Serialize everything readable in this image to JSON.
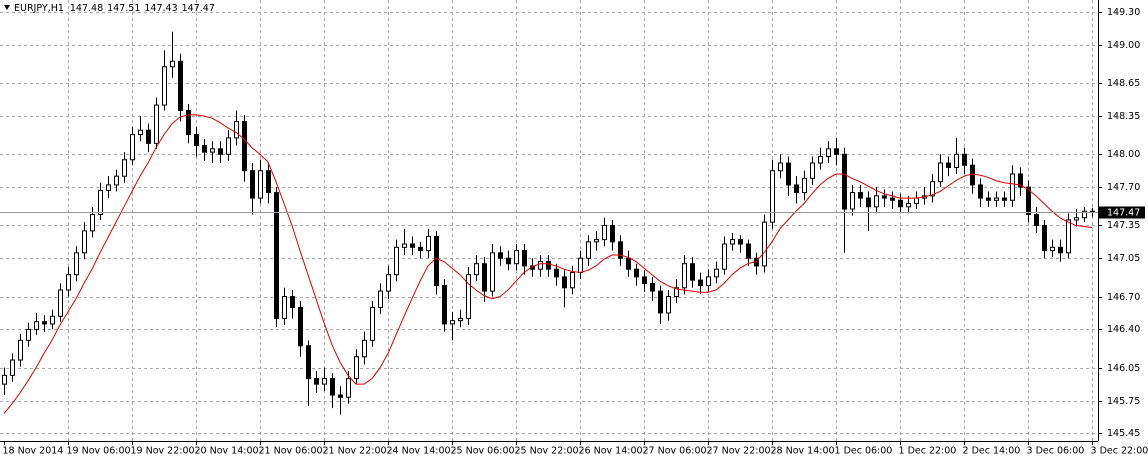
{
  "chart_data": {
    "type": "candlestick",
    "title": "EURJPY,H1",
    "categories": [
      "18 Nov 2014",
      null,
      null,
      null,
      null,
      null,
      null,
      null,
      "19 Nov 06:00",
      null,
      null,
      null,
      null,
      null,
      null,
      null,
      "19 Nov 22:00",
      null,
      null,
      null,
      null,
      null,
      null,
      null,
      "20 Nov 14:00",
      null,
      null,
      null,
      null,
      null,
      null,
      null,
      "21 Nov 06:00",
      null,
      null,
      null,
      null,
      null,
      null,
      null,
      "21 Nov 22:00",
      null,
      null,
      null,
      null,
      null,
      null,
      null,
      "24 Nov 14:00",
      null,
      null,
      null,
      null,
      null,
      null,
      null,
      "25 Nov 06:00",
      null,
      null,
      null,
      null,
      null,
      null,
      null,
      "25 Nov 22:00",
      null,
      null,
      null,
      null,
      null,
      null,
      null,
      "26 Nov 14:00",
      null,
      null,
      null,
      null,
      null,
      null,
      null,
      "27 Nov 06:00",
      null,
      null,
      null,
      null,
      null,
      null,
      null,
      "27 Nov 22:00",
      null,
      null,
      null,
      null,
      null,
      null,
      null,
      "28 Nov 14:00",
      null,
      null,
      null,
      null,
      null,
      null,
      null,
      "1 Dec 06:00",
      null,
      null,
      null,
      null,
      null,
      null,
      null,
      "1 Dec 22:00",
      null,
      null,
      null,
      null,
      null,
      null,
      null,
      "2 Dec 14:00",
      null,
      null,
      null,
      null,
      null,
      null,
      null,
      "3 Dec 06:00",
      null,
      null,
      null,
      null,
      null,
      null,
      null,
      "3 Dec 22:00"
    ],
    "open": [
      145.9,
      145.98,
      146.12,
      146.3,
      146.4,
      146.47,
      146.45,
      146.52,
      146.76,
      146.9,
      147.1,
      147.3,
      147.45,
      147.67,
      147.72,
      147.8,
      147.95,
      148.18,
      148.22,
      148.1,
      148.45,
      148.8,
      148.85,
      148.4,
      148.18,
      148.08,
      148.02,
      148.05,
      148.0,
      148.15,
      148.3,
      147.85,
      147.6,
      147.85,
      147.65,
      146.5,
      146.7,
      146.6,
      146.25,
      145.95,
      145.9,
      145.95,
      145.8,
      145.78,
      145.95,
      146.15,
      146.3,
      146.6,
      146.75,
      146.9,
      147.15,
      147.18,
      147.15,
      147.12,
      147.25,
      146.8,
      146.45,
      146.48,
      146.5,
      146.9,
      147.0,
      146.75,
      147.1,
      147.05,
      147.0,
      147.12,
      146.98,
      146.95,
      147.02,
      146.95,
      146.88,
      146.78,
      146.92,
      147.05,
      147.2,
      147.22,
      147.35,
      147.2,
      147.05,
      146.95,
      146.88,
      146.82,
      146.75,
      146.55,
      146.7,
      146.78,
      147.0,
      146.85,
      146.8,
      146.88,
      146.95,
      147.18,
      147.22,
      147.18,
      147.05,
      146.98,
      147.38,
      147.85,
      147.92,
      147.72,
      147.65,
      147.78,
      147.92,
      147.98,
      148.05,
      148.0,
      147.5,
      147.65,
      147.6,
      147.52,
      147.62,
      147.6,
      147.58,
      147.52,
      147.55,
      147.6,
      147.62,
      147.75,
      147.92,
      147.88,
      148.0,
      147.9,
      147.72,
      147.6,
      147.58,
      147.6,
      147.58,
      147.82,
      147.7,
      147.45,
      147.35,
      147.12,
      147.15,
      147.1,
      147.4,
      147.42,
      147.48
    ],
    "high": [
      146.05,
      146.18,
      146.36,
      146.46,
      146.55,
      146.53,
      146.58,
      146.82,
      146.97,
      147.16,
      147.38,
      147.52,
      147.74,
      147.8,
      147.86,
      148.02,
      148.25,
      148.35,
      148.28,
      148.52,
      148.95,
      149.12,
      148.92,
      148.46,
      148.25,
      148.14,
      148.12,
      148.12,
      148.22,
      148.4,
      148.36,
      147.92,
      147.95,
      147.92,
      147.7,
      146.78,
      146.76,
      146.66,
      146.3,
      146.02,
      146.05,
      146.0,
      145.88,
      146.02,
      146.22,
      146.38,
      146.66,
      146.82,
      146.98,
      147.22,
      147.32,
      147.25,
      147.2,
      147.32,
      147.3,
      146.86,
      146.56,
      146.58,
      146.97,
      147.08,
      147.06,
      147.18,
      147.16,
      147.12,
      147.18,
      147.18,
      147.05,
      147.08,
      147.08,
      147.0,
      146.94,
      146.98,
      147.12,
      147.26,
      147.3,
      147.42,
      147.4,
      147.26,
      147.12,
      147.0,
      146.94,
      146.88,
      146.8,
      146.76,
      146.86,
      147.08,
      147.06,
      146.92,
      146.95,
      147.02,
      147.25,
      147.28,
      147.26,
      147.22,
      147.1,
      147.45,
      147.95,
      148.0,
      147.98,
      147.8,
      147.85,
      147.98,
      148.06,
      148.12,
      148.15,
      148.06,
      147.72,
      147.72,
      147.66,
      147.7,
      147.68,
      147.66,
      147.64,
      147.62,
      147.66,
      147.7,
      147.82,
      148.0,
      147.98,
      148.15,
      148.06,
      147.96,
      147.78,
      147.66,
      147.66,
      147.66,
      147.9,
      147.88,
      147.76,
      147.52,
      147.4,
      147.22,
      147.22,
      147.46,
      147.5,
      147.52,
      147.51
    ],
    "low": [
      145.8,
      145.92,
      146.06,
      146.24,
      146.35,
      146.38,
      146.4,
      146.47,
      146.7,
      146.84,
      147.04,
      147.24,
      147.4,
      147.6,
      147.66,
      147.74,
      147.9,
      148.12,
      148.02,
      148.05,
      148.4,
      148.7,
      148.3,
      148.1,
      147.98,
      147.94,
      147.92,
      147.92,
      147.94,
      148.08,
      147.75,
      147.45,
      147.55,
      147.55,
      146.42,
      146.44,
      146.5,
      146.15,
      145.7,
      145.82,
      145.84,
      145.68,
      145.62,
      145.72,
      145.9,
      146.08,
      146.24,
      146.54,
      146.68,
      146.84,
      147.08,
      147.08,
      147.05,
      147.05,
      146.72,
      146.38,
      146.3,
      146.42,
      146.44,
      146.84,
      146.65,
      146.7,
      146.98,
      146.94,
      146.94,
      146.9,
      146.88,
      146.88,
      146.88,
      146.8,
      146.6,
      146.72,
      146.86,
      146.98,
      147.12,
      147.16,
      147.12,
      146.98,
      146.88,
      146.8,
      146.74,
      146.66,
      146.45,
      146.48,
      146.64,
      146.72,
      146.78,
      146.72,
      146.74,
      146.82,
      146.9,
      147.12,
      147.1,
      146.98,
      146.9,
      146.92,
      147.32,
      147.78,
      147.62,
      147.55,
      147.58,
      147.72,
      147.86,
      147.92,
      147.9,
      147.1,
      147.44,
      147.52,
      147.3,
      147.46,
      147.52,
      147.5,
      147.46,
      147.46,
      147.5,
      147.54,
      147.56,
      147.7,
      147.8,
      147.82,
      147.82,
      147.64,
      147.52,
      147.52,
      147.52,
      147.52,
      147.52,
      147.62,
      147.38,
      147.28,
      147.05,
      147.06,
      147.02,
      147.05,
      147.34,
      147.38,
      147.43
    ],
    "close": [
      145.98,
      146.12,
      146.3,
      146.4,
      146.47,
      146.45,
      146.52,
      146.76,
      146.9,
      147.1,
      147.3,
      147.45,
      147.67,
      147.72,
      147.8,
      147.95,
      148.18,
      148.22,
      148.1,
      148.45,
      148.8,
      148.85,
      148.4,
      148.18,
      148.08,
      148.02,
      148.05,
      148.0,
      148.15,
      148.3,
      147.85,
      147.6,
      147.85,
      147.65,
      146.5,
      146.7,
      146.6,
      146.25,
      145.95,
      145.9,
      145.95,
      145.8,
      145.78,
      145.95,
      146.15,
      146.3,
      146.6,
      146.75,
      146.9,
      147.15,
      147.18,
      147.15,
      147.12,
      147.25,
      146.8,
      146.45,
      146.48,
      146.5,
      146.9,
      147.0,
      146.75,
      147.1,
      147.05,
      147.0,
      147.12,
      146.98,
      146.95,
      147.02,
      146.95,
      146.88,
      146.78,
      146.92,
      147.05,
      147.2,
      147.22,
      147.35,
      147.2,
      147.05,
      146.95,
      146.88,
      146.82,
      146.75,
      146.55,
      146.7,
      146.78,
      147.0,
      146.85,
      146.8,
      146.88,
      146.95,
      147.18,
      147.22,
      147.18,
      147.05,
      146.98,
      147.38,
      147.85,
      147.92,
      147.72,
      147.65,
      147.78,
      147.92,
      147.98,
      148.05,
      148.0,
      147.5,
      147.65,
      147.6,
      147.52,
      147.62,
      147.6,
      147.58,
      147.52,
      147.55,
      147.6,
      147.62,
      147.75,
      147.92,
      147.88,
      148.0,
      147.9,
      147.72,
      147.6,
      147.58,
      147.6,
      147.58,
      147.82,
      147.7,
      147.45,
      147.35,
      147.12,
      147.15,
      147.1,
      147.4,
      147.42,
      147.48,
      147.47
    ],
    "series": [
      {
        "color": "#e00000",
        "values": [
          145.63,
          145.72,
          145.82,
          145.93,
          146.05,
          146.18,
          146.3,
          146.44,
          146.56,
          146.68,
          146.82,
          146.95,
          147.1,
          147.24,
          147.38,
          147.52,
          147.66,
          147.8,
          147.92,
          148.06,
          148.18,
          148.28,
          148.34,
          148.36,
          148.36,
          148.35,
          148.33,
          148.29,
          148.24,
          148.2,
          148.14,
          148.06,
          148.0,
          147.93,
          147.75,
          147.55,
          147.35,
          147.12,
          146.9,
          146.68,
          146.46,
          146.26,
          146.1,
          145.98,
          145.9,
          145.9,
          145.95,
          146.05,
          146.18,
          146.35,
          146.52,
          146.68,
          146.84,
          146.98,
          147.05,
          147.02,
          146.96,
          146.9,
          146.82,
          146.76,
          146.71,
          146.68,
          146.7,
          146.76,
          146.84,
          146.92,
          146.97,
          147.0,
          147.0,
          146.98,
          146.95,
          146.93,
          146.92,
          146.94,
          146.98,
          147.04,
          147.08,
          147.08,
          147.06,
          147.02,
          146.96,
          146.9,
          146.84,
          146.8,
          146.77,
          146.76,
          146.75,
          146.74,
          146.74,
          146.76,
          146.82,
          146.9,
          146.96,
          147.0,
          147.02,
          147.1,
          147.2,
          147.32,
          147.4,
          147.48,
          147.55,
          147.64,
          147.72,
          147.78,
          147.82,
          147.82,
          147.78,
          147.75,
          147.71,
          147.67,
          147.64,
          147.62,
          147.6,
          147.6,
          147.6,
          147.61,
          147.63,
          147.66,
          147.71,
          147.76,
          147.8,
          147.82,
          147.81,
          147.79,
          147.76,
          147.74,
          147.73,
          147.72,
          147.68,
          147.62,
          147.55,
          147.48,
          147.42,
          147.38,
          147.35,
          147.34,
          147.33
        ]
      }
    ],
    "up_color": "#ffffff",
    "down_color": "#000000",
    "outline_color": "#000000",
    "ylim": [
      145.38,
      149.41
    ],
    "yticks": [
      {
        "value": 149.3,
        "label": "149.30"
      },
      {
        "value": 149,
        "label": "149.00"
      },
      148.65,
      148.35,
      {
        "value": 148,
        "label": "148.00"
      },
      {
        "value": 147.7,
        "label": "147.70"
      },
      147.35,
      147.05,
      {
        "value": 146.7,
        "label": "146.70"
      },
      {
        "value": 146.4,
        "label": "146.40"
      },
      146.05,
      145.75,
      145.45
    ],
    "grid": true
  }
}
